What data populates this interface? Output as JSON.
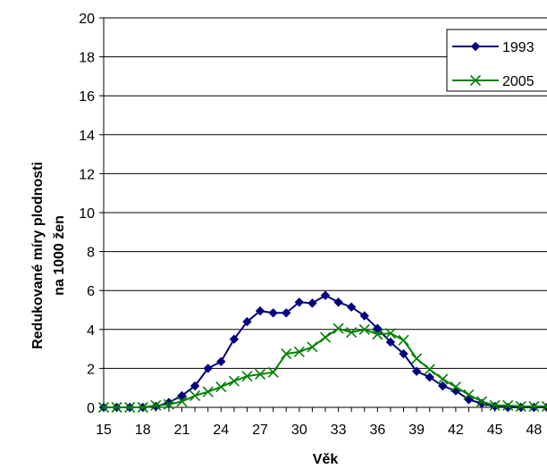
{
  "chart_data": {
    "type": "line",
    "xlabel": "Věk",
    "ylabel": "Redukované míry plodnosti na 1000 žen",
    "ylabel_lines": [
      "Redukované míry plodnosti",
      "na 1000 žen"
    ],
    "xlim": [
      15,
      49
    ],
    "ylim": [
      0,
      20
    ],
    "x_ticks": [
      15,
      18,
      21,
      24,
      27,
      30,
      33,
      36,
      39,
      42,
      45,
      48
    ],
    "y_ticks": [
      0,
      2,
      4,
      6,
      8,
      10,
      12,
      14,
      16,
      18,
      20
    ],
    "grid": "horizontal",
    "legend_position": "top-right",
    "x": [
      15,
      16,
      17,
      18,
      19,
      20,
      21,
      22,
      23,
      24,
      25,
      26,
      27,
      28,
      29,
      30,
      31,
      32,
      33,
      34,
      35,
      36,
      37,
      38,
      39,
      40,
      41,
      42,
      43,
      44,
      45,
      46,
      47,
      48,
      49
    ],
    "series": [
      {
        "name": "1993",
        "color": "#000080",
        "marker": "diamond",
        "values": [
          0.0,
          0.0,
          0.0,
          0.0,
          0.05,
          0.25,
          0.6,
          1.1,
          2.0,
          2.35,
          3.5,
          4.4,
          4.95,
          4.85,
          4.85,
          5.4,
          5.35,
          5.75,
          5.4,
          5.15,
          4.7,
          4.05,
          3.35,
          2.75,
          1.85,
          1.55,
          1.1,
          0.85,
          0.4,
          0.2,
          0.05,
          0.0,
          0.0,
          0.0,
          0.0
        ]
      },
      {
        "name": "2005",
        "color": "#008000",
        "marker": "x",
        "values": [
          0.0,
          0.0,
          0.0,
          0.0,
          0.1,
          0.15,
          0.3,
          0.6,
          0.8,
          1.05,
          1.35,
          1.6,
          1.7,
          1.8,
          2.75,
          2.85,
          3.1,
          3.6,
          4.05,
          3.85,
          4.0,
          3.75,
          3.8,
          3.45,
          2.5,
          1.95,
          1.45,
          1.05,
          0.65,
          0.3,
          0.1,
          0.1,
          0.05,
          0.05,
          0.05
        ]
      }
    ]
  }
}
